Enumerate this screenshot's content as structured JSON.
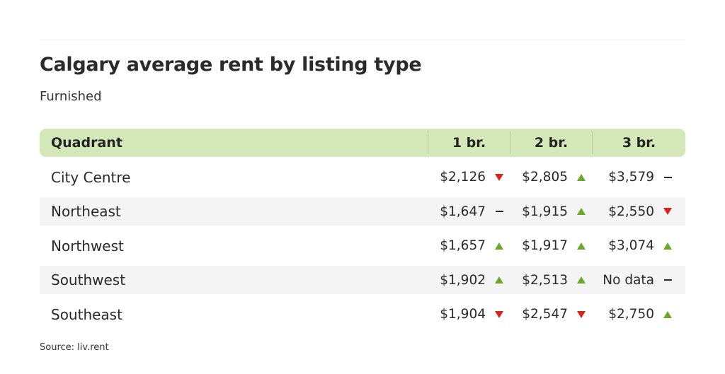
{
  "title": "Calgary average rent by listing type",
  "subtitle": "Furnished",
  "source": "Source: liv.rent",
  "colors": {
    "header_bg": "#d4e7b8",
    "up": "#6aa82a",
    "down": "#d9241c",
    "alt_row": "#f4f4f4"
  },
  "chart_data": {
    "type": "table",
    "title": "Calgary average rent by listing type",
    "subtitle": "Furnished",
    "columns": [
      "Quadrant",
      "1 br.",
      "2 br.",
      "3 br."
    ],
    "rows": [
      {
        "label": "City Centre",
        "cells": [
          {
            "text": "$2,126",
            "value": 2126,
            "trend": "down"
          },
          {
            "text": "$2,805",
            "value": 2805,
            "trend": "up"
          },
          {
            "text": "$3,579",
            "value": 3579,
            "trend": "flat"
          }
        ]
      },
      {
        "label": "Northeast",
        "cells": [
          {
            "text": "$1,647",
            "value": 1647,
            "trend": "flat"
          },
          {
            "text": "$1,915",
            "value": 1915,
            "trend": "up"
          },
          {
            "text": "$2,550",
            "value": 2550,
            "trend": "down"
          }
        ]
      },
      {
        "label": "Northwest",
        "cells": [
          {
            "text": "$1,657",
            "value": 1657,
            "trend": "up"
          },
          {
            "text": "$1,917",
            "value": 1917,
            "trend": "up"
          },
          {
            "text": "$3,074",
            "value": 3074,
            "trend": "up"
          }
        ]
      },
      {
        "label": "Southwest",
        "cells": [
          {
            "text": "$1,902",
            "value": 1902,
            "trend": "up"
          },
          {
            "text": "$2,513",
            "value": 2513,
            "trend": "up"
          },
          {
            "text": "No data",
            "value": null,
            "trend": "flat"
          }
        ]
      },
      {
        "label": "Southeast",
        "cells": [
          {
            "text": "$1,904",
            "value": 1904,
            "trend": "down"
          },
          {
            "text": "$2,547",
            "value": 2547,
            "trend": "down"
          },
          {
            "text": "$2,750",
            "value": 2750,
            "trend": "up"
          }
        ]
      }
    ]
  }
}
